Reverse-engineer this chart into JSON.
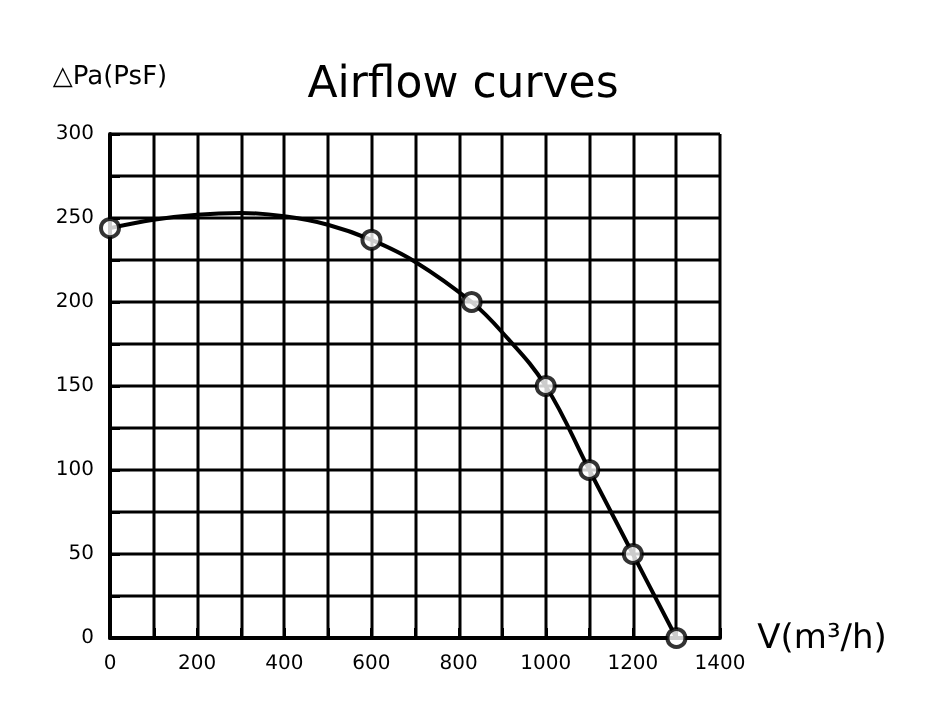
{
  "chart_data": {
    "type": "line",
    "title": "Airflow curves",
    "xlabel": "V(m³/h)",
    "ylabel": "△Pa(PsF)",
    "xlim": [
      0,
      1400
    ],
    "ylim": [
      0,
      300
    ],
    "xticks": [
      0,
      {
        "value": 100,
        "label": null
      },
      200,
      {
        "value": 300,
        "label": null
      },
      400,
      {
        "value": 500,
        "label": null
      },
      600,
      {
        "value": 700,
        "label": null
      },
      800,
      {
        "value": 900,
        "label": null
      },
      1000,
      {
        "value": 1100,
        "label": null
      },
      1200,
      {
        "value": 1300,
        "label": null
      },
      1400
    ],
    "yticks": [
      0,
      {
        "value": 25,
        "label": null
      },
      50,
      {
        "value": 75,
        "label": null
      },
      100,
      {
        "value": 125,
        "label": null
      },
      150,
      {
        "value": 175,
        "label": null
      },
      200,
      {
        "value": 225,
        "label": null
      },
      250,
      {
        "value": 275,
        "label": null
      },
      300
    ],
    "grid": true,
    "series": [
      {
        "color": "#000000",
        "marker": "none",
        "line_style": "solid",
        "x": [
          0,
          100,
          200,
          300,
          400,
          500,
          600,
          700,
          830,
          900,
          1000,
          1100,
          1200,
          1300
        ],
        "values": [
          244,
          249,
          252,
          253,
          251,
          246,
          237,
          224,
          200,
          182,
          150,
          100,
          50,
          0
        ]
      },
      {
        "type": "scatter",
        "color": "#000000",
        "marker": "circle",
        "x": [
          0,
          600,
          830,
          1000,
          1100,
          1200,
          1300
        ],
        "values": [
          244,
          237,
          200,
          150,
          100,
          50,
          0
        ]
      }
    ]
  }
}
